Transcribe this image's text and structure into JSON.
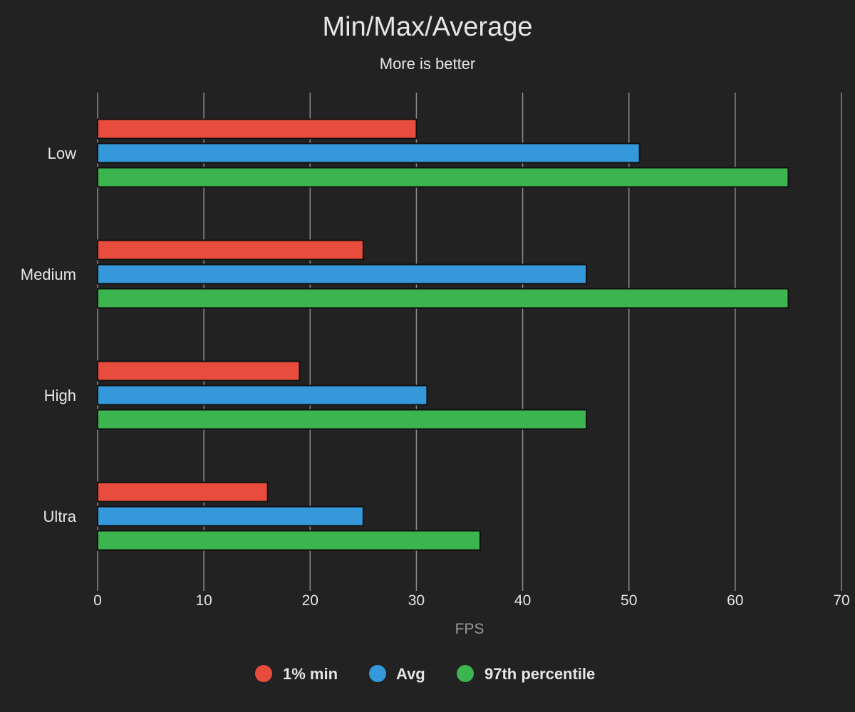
{
  "colors": {
    "background": "#222222",
    "min": "#e74c3c",
    "avg": "#3498db",
    "p97": "#3cb44f",
    "grid": "#8a8a8a",
    "text": "#e6e6e6",
    "axis_label": "#9a9a9a"
  },
  "chart_data": {
    "type": "bar",
    "orientation": "horizontal",
    "title": "Min/Max/Average",
    "subtitle": "More is better",
    "xlabel": "FPS",
    "ylabel": "",
    "xlim": [
      0,
      70
    ],
    "xticks": [
      "0",
      "10",
      "20",
      "30",
      "40",
      "50",
      "60",
      "70"
    ],
    "grid": true,
    "legend_position": "bottom-center",
    "categories": [
      "Low",
      "Medium",
      "High",
      "Ultra"
    ],
    "series": [
      {
        "name": "1% min",
        "color_key": "min",
        "values": [
          30,
          25,
          19,
          16
        ]
      },
      {
        "name": "Avg",
        "color_key": "avg",
        "values": [
          51,
          46,
          31,
          25
        ]
      },
      {
        "name": "97th percentile",
        "color_key": "p97",
        "values": [
          65,
          65,
          46,
          36
        ]
      }
    ]
  }
}
